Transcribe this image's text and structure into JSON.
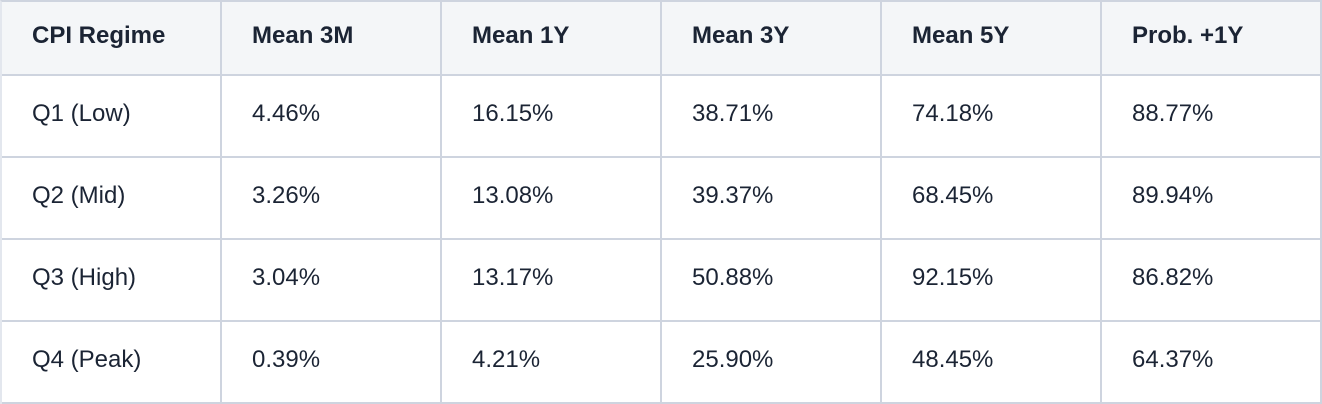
{
  "colors": {
    "header_bg": "#f4f6f8",
    "body_bg": "#ffffff",
    "border": "#ced4df",
    "text": "#1b2434"
  },
  "table": {
    "columns": [
      "CPI Regime",
      "Mean 3M",
      "Mean 1Y",
      "Mean 3Y",
      "Mean 5Y",
      "Prob. +1Y"
    ],
    "rows": [
      [
        "Q1 (Low)",
        "4.46%",
        "16.15%",
        "38.71%",
        "74.18%",
        "88.77%"
      ],
      [
        "Q2 (Mid)",
        "3.26%",
        "13.08%",
        "39.37%",
        "68.45%",
        "89.94%"
      ],
      [
        "Q3 (High)",
        "3.04%",
        "13.17%",
        "50.88%",
        "92.15%",
        "86.82%"
      ],
      [
        "Q4 (Peak)",
        "0.39%",
        "4.21%",
        "25.90%",
        "48.45%",
        "64.37%"
      ]
    ]
  },
  "chart_data": {
    "type": "table",
    "title": "",
    "columns": [
      "CPI Regime",
      "Mean 3M",
      "Mean 1Y",
      "Mean 3Y",
      "Mean 5Y",
      "Prob. +1Y"
    ],
    "row_labels": [
      "Q1 (Low)",
      "Q2 (Mid)",
      "Q3 (High)",
      "Q4 (Peak)"
    ],
    "series": [
      {
        "name": "Mean 3M",
        "values": [
          4.46,
          3.26,
          3.04,
          0.39
        ],
        "unit": "%"
      },
      {
        "name": "Mean 1Y",
        "values": [
          16.15,
          13.08,
          13.17,
          4.21
        ],
        "unit": "%"
      },
      {
        "name": "Mean 3Y",
        "values": [
          38.71,
          39.37,
          50.88,
          25.9
        ],
        "unit": "%"
      },
      {
        "name": "Mean 5Y",
        "values": [
          74.18,
          68.45,
          92.15,
          48.45
        ],
        "unit": "%"
      },
      {
        "name": "Prob. +1Y",
        "values": [
          88.77,
          89.94,
          86.82,
          64.37
        ],
        "unit": "%"
      }
    ]
  }
}
